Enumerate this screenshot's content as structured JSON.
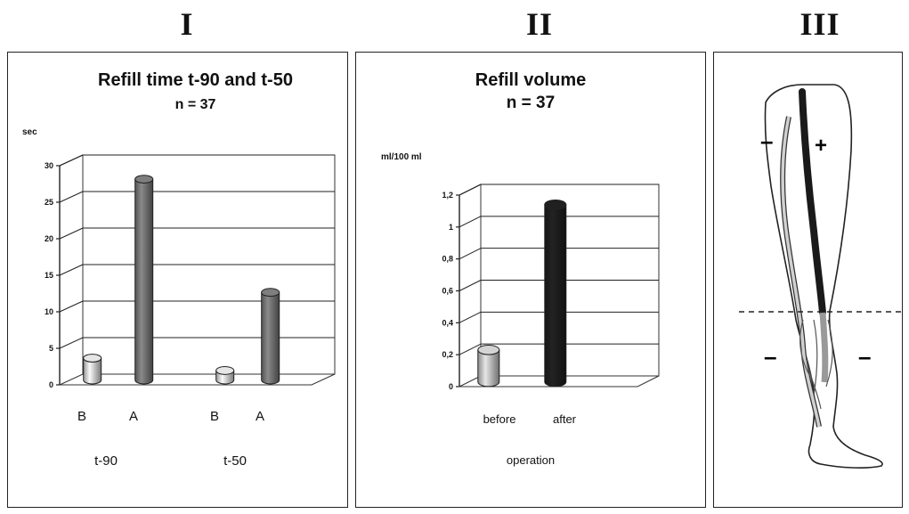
{
  "headers": [
    "I",
    "II",
    "III"
  ],
  "chart_data": [
    {
      "type": "bar",
      "title": "Refill time t-90  and t-50",
      "subtitle": "n = 37",
      "ylabel": "sec",
      "ylim": [
        0,
        30
      ],
      "yticks": [
        0,
        5,
        10,
        15,
        20,
        25,
        30
      ],
      "ytick_labels": [
        "0",
        "5",
        "10",
        "15",
        "20",
        "25",
        "30"
      ],
      "groups": [
        "t-90",
        "t-50"
      ],
      "categories": [
        "B",
        "A",
        "B",
        "A"
      ],
      "values": [
        3,
        27.5,
        1.3,
        12
      ],
      "colors": [
        "#c8c8c8",
        "#6e6e6e",
        "#c8c8c8",
        "#6e6e6e"
      ],
      "grid": true
    },
    {
      "type": "bar",
      "title": "Refill volume",
      "subtitle": "n = 37",
      "ylabel": "ml/100 ml",
      "ylim": [
        0,
        1.2
      ],
      "yticks": [
        0,
        0.2,
        0.4,
        0.6,
        0.8,
        1.0,
        1.2
      ],
      "ytick_labels": [
        "0",
        "0,2",
        "0,4",
        "0,6",
        "0,8",
        "1",
        "1,2"
      ],
      "categories": [
        "before",
        "after"
      ],
      "values": [
        0.2,
        1.11
      ],
      "colors": [
        "#b8b8b8",
        "#1c1c1c"
      ],
      "xlabel": "operation",
      "grid": true
    }
  ],
  "leg": {
    "signs": [
      "–",
      "+",
      "–",
      "–"
    ],
    "colors": {
      "deep_vein": "#1a1a1a",
      "superficial_vein": "#c8c8c8",
      "lower_vein": "#999999"
    }
  }
}
